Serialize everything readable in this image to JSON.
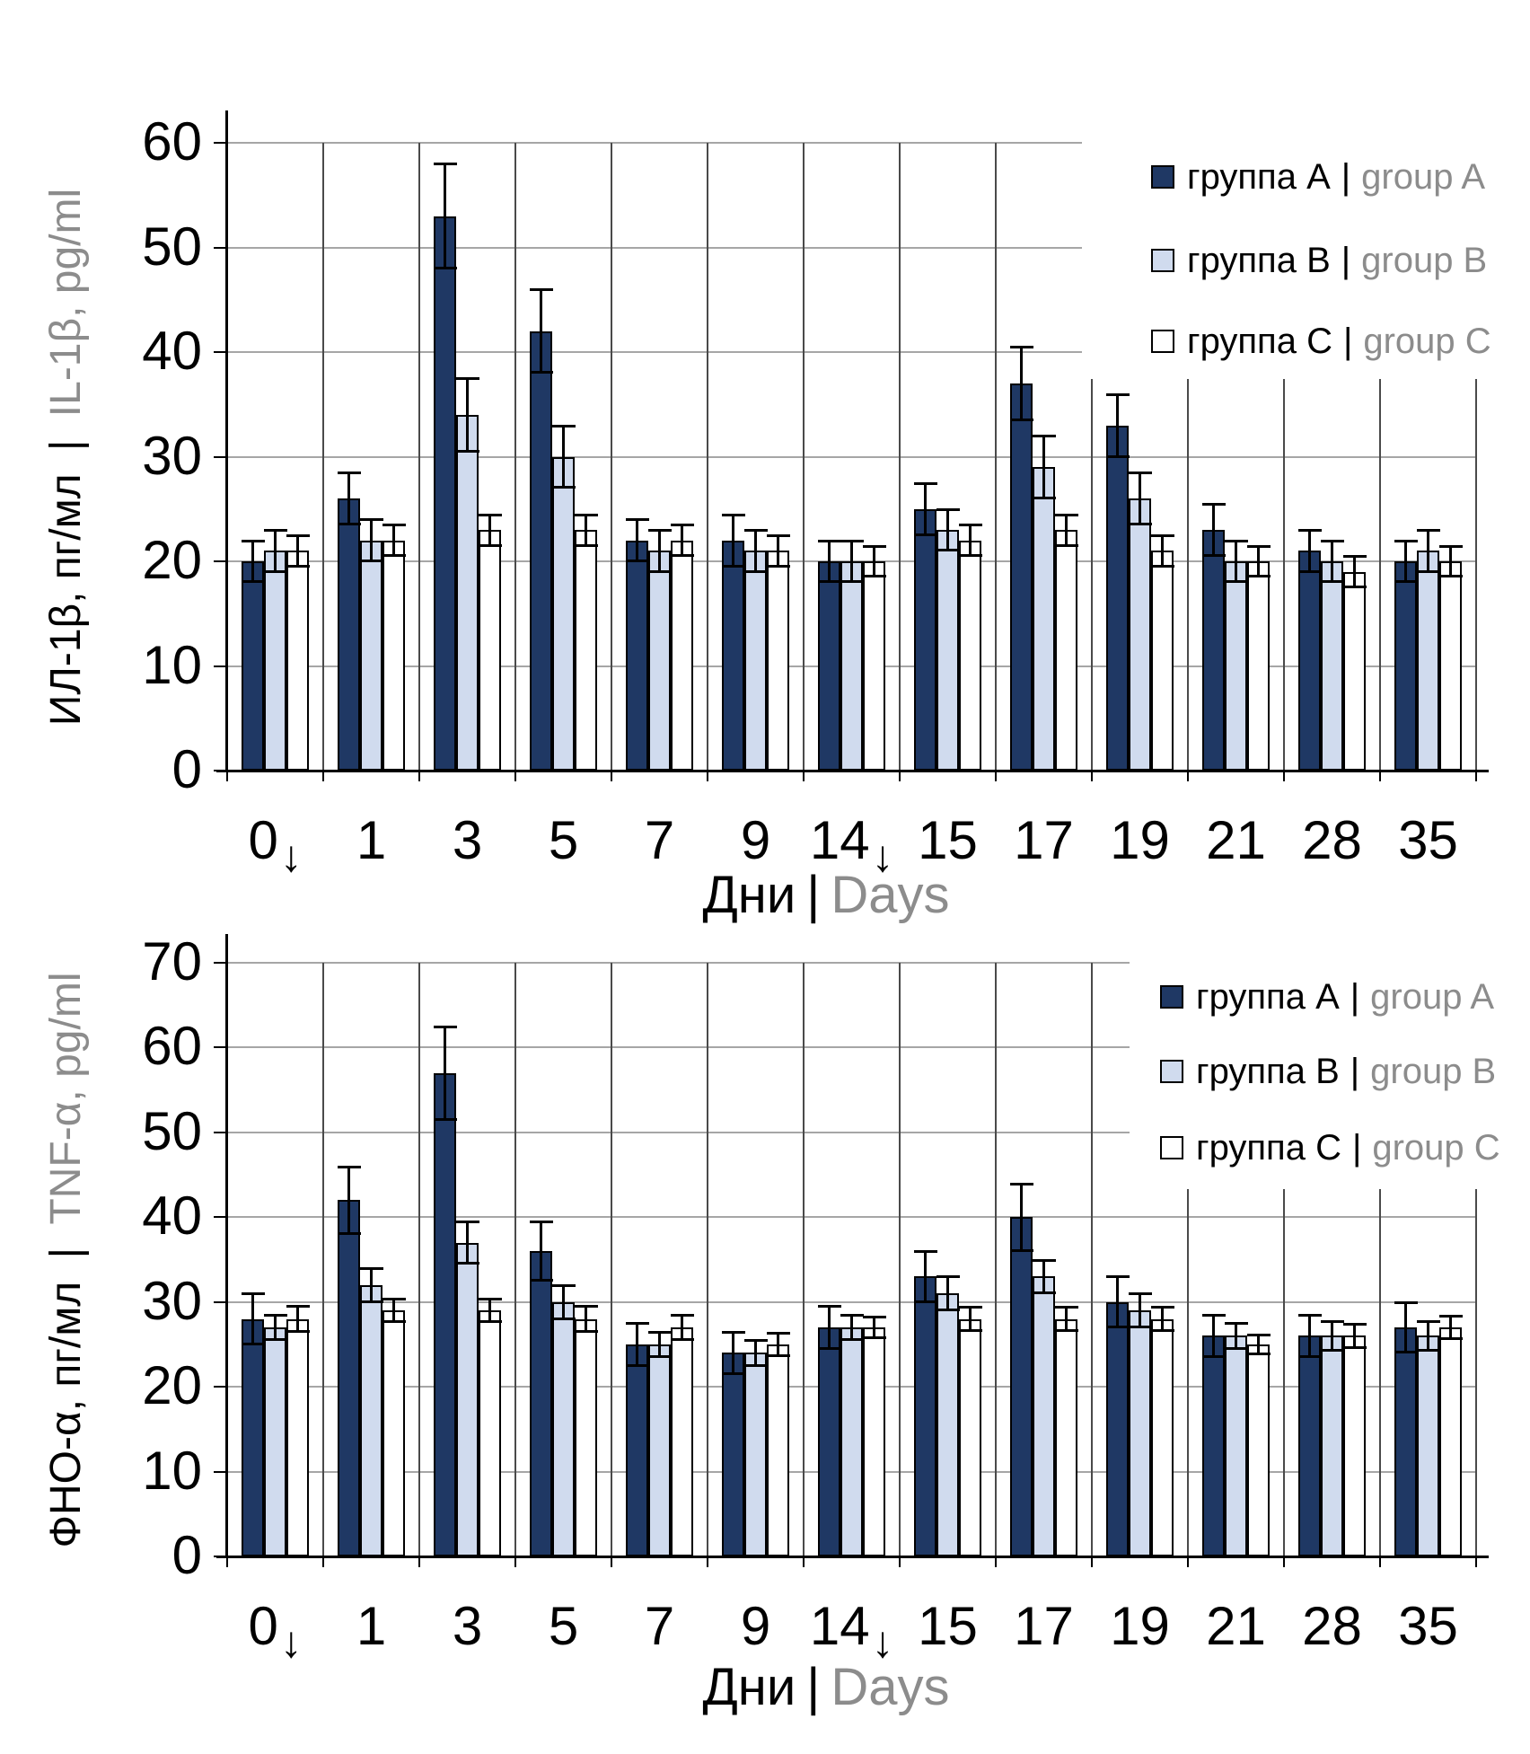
{
  "page": {
    "background": "#FFFFFF"
  },
  "colors": {
    "navy": "#1F3864",
    "light_blue": "#D0DBEE",
    "white_bar": "#FFFFFF",
    "gridline": "#A6A6A6",
    "category_line": "#4A4A4A",
    "axis": "#000000",
    "text_black": "#000000",
    "text_gray": "#8C8C8C"
  },
  "chart_data": [
    {
      "type": "bar",
      "error_bars": true,
      "ylabel_ru": "ИЛ-1β, пг/мл",
      "ylabel_en": "IL-1β, pg/ml",
      "xlabel_ru": "Дни",
      "xlabel_en": "Days",
      "sep": "|",
      "ylim": [
        0,
        60
      ],
      "ytick_step": 10,
      "yticks": [
        "60",
        "50",
        "40",
        "30",
        "20",
        "10",
        "0"
      ],
      "categories": [
        "0↓",
        "1",
        "3",
        "5",
        "7",
        "9",
        "14↓",
        "15",
        "17",
        "19",
        "21",
        "28",
        "35"
      ],
      "grid": "horizontal-gray-and-category-boundaries",
      "legend_position": "inside-top-right",
      "series": [
        {
          "name_ru": "группа A",
          "name_en": "group A",
          "color": "#1F3864",
          "values": [
            20,
            26,
            53,
            42,
            22,
            22,
            20,
            25,
            37,
            33,
            23,
            21,
            20
          ],
          "errors": [
            2,
            2.5,
            5,
            4,
            2,
            2.5,
            2,
            2.5,
            3.5,
            3,
            2.5,
            2,
            2
          ]
        },
        {
          "name_ru": "группа B",
          "name_en": "group B",
          "color": "#D0DBEE",
          "values": [
            21,
            22,
            34,
            30,
            21,
            21,
            20,
            23,
            29,
            26,
            20,
            20,
            21
          ],
          "errors": [
            2,
            2,
            3.5,
            3,
            2,
            2,
            2,
            2,
            3,
            2.5,
            2,
            2,
            2
          ]
        },
        {
          "name_ru": "группа C",
          "name_en": "group C",
          "color": "#FFFFFF",
          "values": [
            21,
            22,
            23,
            23,
            22,
            21,
            20,
            22,
            23,
            21,
            20,
            19,
            20
          ],
          "errors": [
            1.5,
            1.5,
            1.5,
            1.5,
            1.5,
            1.5,
            1.5,
            1.5,
            1.5,
            1.5,
            1.5,
            1.5,
            1.5
          ]
        }
      ]
    },
    {
      "type": "bar",
      "error_bars": true,
      "ylabel_ru": "ФНО-α, пг/мл",
      "ylabel_en": "TNF-α, pg/ml",
      "xlabel_ru": "Дни",
      "xlabel_en": "Days",
      "sep": "|",
      "ylim": [
        0,
        70
      ],
      "ytick_step": 10,
      "yticks": [
        "70",
        "60",
        "50",
        "40",
        "30",
        "20",
        "10",
        "0"
      ],
      "categories": [
        "0↓",
        "1",
        "3",
        "5",
        "7",
        "9",
        "14↓",
        "15",
        "17",
        "19",
        "21",
        "28",
        "35"
      ],
      "grid": "horizontal-gray-and-category-boundaries",
      "legend_position": "inside-top-right",
      "series": [
        {
          "name_ru": "группа A",
          "name_en": "group A",
          "color": "#1F3864",
          "values": [
            28,
            42,
            57,
            36,
            25,
            24,
            27,
            33,
            40,
            30,
            26,
            26,
            27
          ],
          "errors": [
            3,
            4,
            5.5,
            3.5,
            2.5,
            2.5,
            2.5,
            3,
            4,
            3,
            2.5,
            2.5,
            3
          ]
        },
        {
          "name_ru": "группа B",
          "name_en": "group B",
          "color": "#D0DBEE",
          "values": [
            27,
            32,
            37,
            30,
            25,
            24,
            27,
            31,
            33,
            29,
            26,
            26,
            26
          ],
          "errors": [
            1.5,
            2,
            2.5,
            2,
            1.5,
            1.5,
            1.5,
            2,
            2,
            2,
            1.5,
            1.7,
            1.7
          ]
        },
        {
          "name_ru": "группа C",
          "name_en": "group C",
          "color": "#FFFFFF",
          "values": [
            28,
            29,
            29,
            28,
            27,
            25,
            27,
            28,
            28,
            28,
            25,
            26,
            27
          ],
          "errors": [
            1.5,
            1.4,
            1.4,
            1.5,
            1.5,
            1.4,
            1.3,
            1.4,
            1.4,
            1.4,
            1.2,
            1.4,
            1.4
          ]
        }
      ]
    }
  ]
}
